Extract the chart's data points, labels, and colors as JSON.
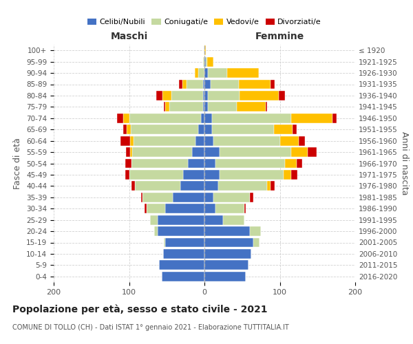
{
  "age_groups": [
    "0-4",
    "5-9",
    "10-14",
    "15-19",
    "20-24",
    "25-29",
    "30-34",
    "35-39",
    "40-44",
    "45-49",
    "50-54",
    "55-59",
    "60-64",
    "65-69",
    "70-74",
    "75-79",
    "80-84",
    "85-89",
    "90-94",
    "95-99",
    "100+"
  ],
  "birth_years": [
    "2016-2020",
    "2011-2015",
    "2006-2010",
    "2001-2005",
    "1996-2000",
    "1991-1995",
    "1986-1990",
    "1981-1985",
    "1976-1980",
    "1971-1975",
    "1966-1970",
    "1961-1965",
    "1956-1960",
    "1951-1955",
    "1946-1950",
    "1941-1945",
    "1936-1940",
    "1931-1935",
    "1926-1930",
    "1921-1925",
    "≤ 1920"
  ],
  "male": {
    "celibe": [
      57,
      60,
      55,
      52,
      62,
      62,
      52,
      42,
      32,
      28,
      22,
      16,
      12,
      8,
      5,
      2,
      2,
      2,
      0,
      0,
      0
    ],
    "coniugato": [
      0,
      0,
      0,
      2,
      5,
      10,
      25,
      40,
      60,
      72,
      75,
      80,
      82,
      90,
      95,
      45,
      42,
      22,
      8,
      2,
      1
    ],
    "vedovo": [
      0,
      0,
      0,
      0,
      0,
      0,
      0,
      0,
      0,
      0,
      0,
      3,
      5,
      5,
      8,
      5,
      12,
      5,
      5,
      0,
      0
    ],
    "divorziato": [
      0,
      0,
      0,
      0,
      0,
      0,
      2,
      2,
      5,
      5,
      8,
      5,
      12,
      5,
      8,
      2,
      8,
      5,
      0,
      0,
      0
    ]
  },
  "female": {
    "nubile": [
      55,
      58,
      62,
      65,
      60,
      25,
      15,
      12,
      18,
      20,
      15,
      20,
      12,
      10,
      10,
      5,
      5,
      8,
      5,
      2,
      0
    ],
    "coniugata": [
      0,
      0,
      0,
      8,
      15,
      28,
      38,
      48,
      65,
      85,
      92,
      95,
      88,
      82,
      105,
      38,
      42,
      38,
      25,
      2,
      0
    ],
    "vedova": [
      0,
      0,
      0,
      0,
      0,
      0,
      0,
      0,
      5,
      10,
      15,
      22,
      25,
      25,
      55,
      38,
      52,
      42,
      42,
      8,
      2
    ],
    "divorziata": [
      0,
      0,
      0,
      0,
      0,
      0,
      2,
      5,
      5,
      8,
      8,
      12,
      8,
      5,
      5,
      2,
      8,
      5,
      0,
      0,
      0
    ]
  },
  "colors": {
    "celibe": "#4472c4",
    "coniugato": "#c5d9a0",
    "vedovo": "#ffc000",
    "divorziato": "#cc0000"
  },
  "xlim": 200,
  "title": "Popolazione per età, sesso e stato civile - 2021",
  "subtitle": "COMUNE DI TOLLO (CH) - Dati ISTAT 1° gennaio 2021 - Elaborazione TUTTITALIA.IT",
  "xlabel_left": "Maschi",
  "xlabel_right": "Femmine",
  "ylabel": "Fasce di età",
  "ylabel_right": "Anni di nascita",
  "legend_labels": [
    "Celibi/Nubili",
    "Coniugati/e",
    "Vedovi/e",
    "Divorziati/e"
  ],
  "background_color": "#ffffff",
  "grid_color": "#cccccc"
}
